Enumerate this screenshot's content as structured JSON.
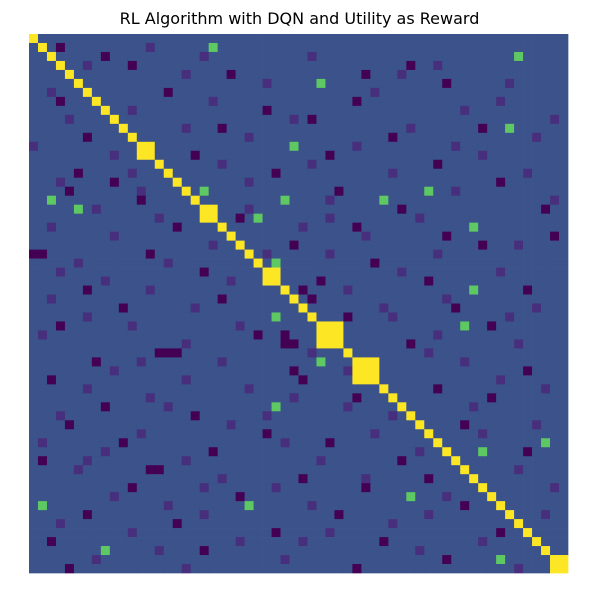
{
  "chart_data": {
    "type": "heatmap",
    "title": "RL Algorithm with DQN and Utility as Reward",
    "axes_visible": false,
    "colormap": "viridis",
    "n_rows": 60,
    "n_cols": 60,
    "scale": {
      "min": 0,
      "max": 4
    },
    "colors": {
      "0": "#440154",
      "1": "#472f7d",
      "2": "#3b528b",
      "3": "#5ec962",
      "4": "#fde725"
    },
    "background_value": 2,
    "diagonal_value": 4,
    "diagonal_blocks": [
      [
        12,
        13
      ],
      [
        19,
        20
      ],
      [
        26,
        27
      ],
      [
        32,
        34
      ],
      [
        36,
        38
      ],
      [
        58,
        59
      ]
    ],
    "cells": [
      [
        1,
        20,
        3
      ],
      [
        2,
        54,
        3
      ],
      [
        5,
        32,
        3
      ],
      [
        10,
        53,
        3
      ],
      [
        12,
        29,
        3
      ],
      [
        17,
        19,
        3
      ],
      [
        17,
        44,
        3
      ],
      [
        18,
        2,
        3
      ],
      [
        18,
        28,
        3
      ],
      [
        18,
        39,
        3
      ],
      [
        19,
        5,
        3
      ],
      [
        20,
        25,
        3
      ],
      [
        21,
        49,
        3
      ],
      [
        25,
        27,
        3
      ],
      [
        28,
        49,
        3
      ],
      [
        31,
        27,
        3
      ],
      [
        32,
        48,
        3
      ],
      [
        36,
        32,
        3
      ],
      [
        41,
        27,
        3
      ],
      [
        45,
        57,
        3
      ],
      [
        46,
        50,
        3
      ],
      [
        51,
        42,
        3
      ],
      [
        52,
        1,
        3
      ],
      [
        52,
        24,
        3
      ],
      [
        57,
        8,
        3
      ],
      [
        58,
        52,
        3
      ],
      [
        59,
        36,
        3
      ],
      [
        1,
        3,
        0
      ],
      [
        2,
        8,
        0
      ],
      [
        3,
        11,
        0
      ],
      [
        4,
        22,
        0
      ],
      [
        4,
        37,
        0
      ],
      [
        5,
        46,
        0
      ],
      [
        6,
        15,
        0
      ],
      [
        7,
        3,
        0
      ],
      [
        8,
        26,
        0
      ],
      [
        9,
        31,
        0
      ],
      [
        10,
        50,
        0
      ],
      [
        11,
        6,
        0
      ],
      [
        11,
        40,
        0
      ],
      [
        13,
        18,
        0
      ],
      [
        13,
        33,
        0
      ],
      [
        14,
        45,
        0
      ],
      [
        15,
        27,
        0
      ],
      [
        16,
        9,
        0
      ],
      [
        16,
        52,
        0
      ],
      [
        17,
        4,
        0
      ],
      [
        17,
        34,
        0
      ],
      [
        18,
        12,
        0
      ],
      [
        19,
        41,
        0
      ],
      [
        19,
        57,
        0
      ],
      [
        20,
        23,
        0
      ],
      [
        21,
        16,
        0
      ],
      [
        21,
        36,
        0
      ],
      [
        22,
        46,
        0
      ],
      [
        23,
        29,
        0
      ],
      [
        23,
        50,
        0
      ],
      [
        24,
        0,
        0
      ],
      [
        24,
        1,
        0
      ],
      [
        24,
        13,
        0
      ],
      [
        25,
        38,
        0
      ],
      [
        26,
        19,
        0
      ],
      [
        27,
        32,
        0
      ],
      [
        27,
        44,
        0
      ],
      [
        28,
        6,
        0
      ],
      [
        28,
        55,
        0
      ],
      [
        29,
        21,
        0
      ],
      [
        29,
        31,
        0
      ],
      [
        30,
        10,
        0
      ],
      [
        30,
        47,
        0
      ],
      [
        31,
        35,
        0
      ],
      [
        32,
        3,
        0
      ],
      [
        32,
        51,
        0
      ],
      [
        33,
        25,
        0
      ],
      [
        34,
        42,
        0
      ],
      [
        34,
        28,
        0
      ],
      [
        35,
        14,
        0
      ],
      [
        35,
        15,
        0
      ],
      [
        35,
        16,
        0
      ],
      [
        36,
        7,
        0
      ],
      [
        37,
        29,
        0
      ],
      [
        37,
        55,
        0
      ],
      [
        38,
        2,
        0
      ],
      [
        38,
        30,
        0
      ],
      [
        39,
        45,
        0
      ],
      [
        40,
        36,
        0
      ],
      [
        40,
        51,
        0
      ],
      [
        41,
        8,
        0
      ],
      [
        42,
        18,
        0
      ],
      [
        43,
        4,
        0
      ],
      [
        43,
        48,
        0
      ],
      [
        44,
        26,
        0
      ],
      [
        45,
        10,
        0
      ],
      [
        45,
        33,
        0
      ],
      [
        46,
        20,
        0
      ],
      [
        46,
        55,
        0
      ],
      [
        47,
        1,
        0
      ],
      [
        47,
        41,
        0
      ],
      [
        48,
        13,
        0
      ],
      [
        48,
        14,
        0
      ],
      [
        49,
        30,
        0
      ],
      [
        49,
        44,
        0
      ],
      [
        50,
        11,
        0
      ],
      [
        50,
        37,
        0
      ],
      [
        51,
        23,
        0
      ],
      [
        52,
        48,
        0
      ],
      [
        53,
        6,
        0
      ],
      [
        53,
        34,
        0
      ],
      [
        54,
        16,
        0
      ],
      [
        55,
        27,
        0
      ],
      [
        55,
        52,
        0
      ],
      [
        56,
        2,
        0
      ],
      [
        56,
        39,
        0
      ],
      [
        57,
        19,
        0
      ],
      [
        58,
        46,
        0
      ],
      [
        59,
        4,
        0
      ],
      [
        59,
        36,
        0
      ],
      [
        33,
        28,
        0
      ],
      [
        34,
        29,
        0
      ],
      [
        28,
        30,
        0
      ],
      [
        15,
        5,
        0
      ],
      [
        22,
        58,
        0
      ],
      [
        10,
        21,
        0
      ],
      [
        7,
        36,
        0
      ],
      [
        3,
        42,
        0
      ],
      [
        1,
        13,
        1
      ],
      [
        2,
        31,
        1
      ],
      [
        3,
        6,
        1
      ],
      [
        3,
        45,
        1
      ],
      [
        4,
        17,
        1
      ],
      [
        5,
        26,
        1
      ],
      [
        5,
        53,
        1
      ],
      [
        6,
        2,
        1
      ],
      [
        6,
        38,
        1
      ],
      [
        7,
        20,
        1
      ],
      [
        8,
        11,
        1
      ],
      [
        8,
        48,
        1
      ],
      [
        9,
        4,
        1
      ],
      [
        9,
        29,
        1
      ],
      [
        10,
        17,
        1
      ],
      [
        10,
        42,
        1
      ],
      [
        11,
        24,
        1
      ],
      [
        11,
        56,
        1
      ],
      [
        12,
        0,
        1
      ],
      [
        12,
        36,
        1
      ],
      [
        13,
        9,
        1
      ],
      [
        13,
        50,
        1
      ],
      [
        14,
        21,
        1
      ],
      [
        14,
        31,
        1
      ],
      [
        15,
        40,
        1
      ],
      [
        15,
        55,
        1
      ],
      [
        16,
        3,
        1
      ],
      [
        16,
        24,
        1
      ],
      [
        17,
        12,
        1
      ],
      [
        17,
        47,
        1
      ],
      [
        18,
        33,
        1
      ],
      [
        18,
        58,
        1
      ],
      [
        19,
        7,
        1
      ],
      [
        19,
        24,
        1
      ],
      [
        20,
        14,
        1
      ],
      [
        20,
        43,
        1
      ],
      [
        21,
        2,
        1
      ],
      [
        21,
        30,
        1
      ],
      [
        22,
        9,
        1
      ],
      [
        22,
        37,
        1
      ],
      [
        23,
        20,
        1
      ],
      [
        23,
        54,
        1
      ],
      [
        24,
        33,
        1
      ],
      [
        24,
        45,
        1
      ],
      [
        25,
        5,
        1
      ],
      [
        25,
        15,
        1
      ],
      [
        26,
        41,
        1
      ],
      [
        26,
        52,
        1
      ],
      [
        27,
        8,
        1
      ],
      [
        27,
        22,
        1
      ],
      [
        28,
        35,
        1
      ],
      [
        28,
        13,
        1
      ],
      [
        29,
        2,
        1
      ],
      [
        29,
        46,
        1
      ],
      [
        30,
        18,
        1
      ],
      [
        30,
        56,
        1
      ],
      [
        31,
        6,
        1
      ],
      [
        31,
        40,
        1
      ],
      [
        32,
        11,
        1
      ],
      [
        32,
        23,
        1
      ],
      [
        33,
        45,
        1
      ],
      [
        33,
        1,
        1
      ],
      [
        34,
        17,
        1
      ],
      [
        34,
        54,
        1
      ],
      [
        35,
        31,
        1
      ],
      [
        35,
        44,
        1
      ],
      [
        36,
        21,
        1
      ],
      [
        36,
        48,
        1
      ],
      [
        37,
        9,
        1
      ],
      [
        37,
        35,
        1
      ],
      [
        38,
        17,
        1
      ],
      [
        38,
        52,
        1
      ],
      [
        39,
        6,
        1
      ],
      [
        39,
        24,
        1
      ],
      [
        40,
        13,
        1
      ],
      [
        40,
        29,
        1
      ],
      [
        41,
        35,
        1
      ],
      [
        41,
        49,
        1
      ],
      [
        42,
        3,
        1
      ],
      [
        42,
        40,
        1
      ],
      [
        43,
        22,
        1
      ],
      [
        43,
        56,
        1
      ],
      [
        44,
        12,
        1
      ],
      [
        44,
        38,
        1
      ],
      [
        45,
        1,
        1
      ],
      [
        45,
        28,
        1
      ],
      [
        46,
        8,
        1
      ],
      [
        46,
        43,
        1
      ],
      [
        47,
        17,
        1
      ],
      [
        47,
        32,
        1
      ],
      [
        48,
        5,
        1
      ],
      [
        48,
        54,
        1
      ],
      [
        49,
        21,
        1
      ],
      [
        49,
        37,
        1
      ],
      [
        50,
        27,
        1
      ],
      [
        50,
        58,
        1
      ],
      [
        51,
        9,
        1
      ],
      [
        51,
        46,
        1
      ],
      [
        52,
        15,
        1
      ],
      [
        52,
        31,
        1
      ],
      [
        53,
        19,
        1
      ],
      [
        53,
        44,
        1
      ],
      [
        54,
        3,
        1
      ],
      [
        54,
        40,
        1
      ],
      [
        55,
        11,
        1
      ],
      [
        55,
        33,
        1
      ],
      [
        56,
        23,
        1
      ],
      [
        56,
        50,
        1
      ],
      [
        57,
        14,
        1
      ],
      [
        57,
        43,
        1
      ],
      [
        58,
        7,
        1
      ],
      [
        58,
        28,
        1
      ],
      [
        59,
        17,
        1
      ],
      [
        59,
        54,
        1
      ],
      [
        2,
        19,
        1
      ],
      [
        4,
        41,
        1
      ],
      [
        7,
        52,
        1
      ],
      [
        12,
        47,
        1
      ],
      [
        15,
        11,
        1
      ],
      [
        20,
        33,
        1
      ],
      [
        26,
        3,
        1
      ],
      [
        31,
        53,
        1
      ],
      [
        36,
        12,
        1
      ],
      [
        39,
        57,
        1
      ],
      [
        42,
        26,
        1
      ],
      [
        44,
        50,
        1
      ],
      [
        47,
        6,
        1
      ],
      [
        50,
        19,
        1
      ],
      [
        53,
        57,
        1
      ],
      [
        56,
        30,
        1
      ],
      [
        9,
        58,
        1
      ],
      [
        24,
        26,
        1
      ],
      [
        30,
        39,
        1
      ],
      [
        41,
        15,
        1
      ]
    ]
  }
}
